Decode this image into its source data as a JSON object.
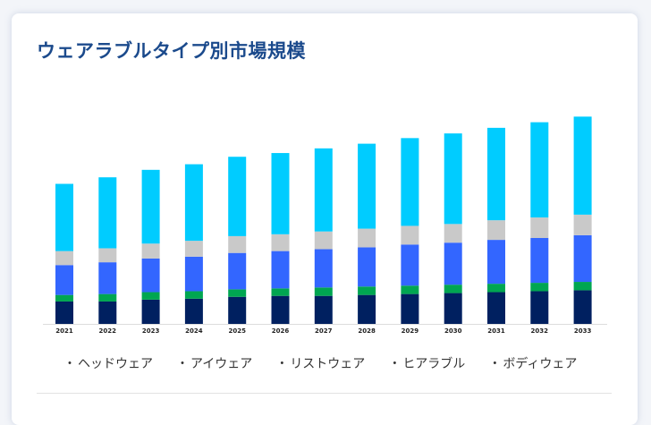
{
  "title": "ウェアラブルタイプ別市場規模",
  "legend": {
    "bullet": "・",
    "items": [
      "ヘッドウェア",
      "アイウェア",
      "リストウェア",
      "ヒアラブル",
      "ボディウェア"
    ]
  },
  "chart_data": {
    "type": "bar",
    "stacked": true,
    "title": "ウェアラブルタイプ別市場規模",
    "xlabel": "",
    "ylabel": "",
    "grid": false,
    "legend_position": "bottom",
    "categories": [
      "2021",
      "2022",
      "2023",
      "2024",
      "2025",
      "2026",
      "2027",
      "2028",
      "2029",
      "2030",
      "2031",
      "2032",
      "2033"
    ],
    "ylim": [
      0,
      230
    ],
    "series": [
      {
        "name": "ヘッドウェア",
        "color": "#002060",
        "values": [
          24,
          24,
          26,
          27,
          29,
          30,
          30,
          31,
          32,
          33,
          34,
          35,
          36
        ]
      },
      {
        "name": "アイウェア",
        "color": "#00a651",
        "values": [
          7,
          8,
          8,
          8,
          8,
          8,
          9,
          9,
          9,
          9,
          9,
          9,
          9
        ]
      },
      {
        "name": "リストウェア",
        "color": "#3366ff",
        "values": [
          32,
          34,
          36,
          37,
          39,
          40,
          41,
          42,
          44,
          45,
          47,
          48,
          50
        ]
      },
      {
        "name": "ヒアラブル",
        "color": "#c9c9c9",
        "values": [
          15,
          15,
          16,
          17,
          18,
          18,
          19,
          20,
          20,
          20,
          21,
          22,
          22
        ]
      },
      {
        "name": "ボディウェア",
        "color": "#00ccff",
        "values": [
          72,
          76,
          79,
          82,
          85,
          87,
          89,
          91,
          94,
          97,
          99,
          102,
          105
        ]
      }
    ]
  }
}
